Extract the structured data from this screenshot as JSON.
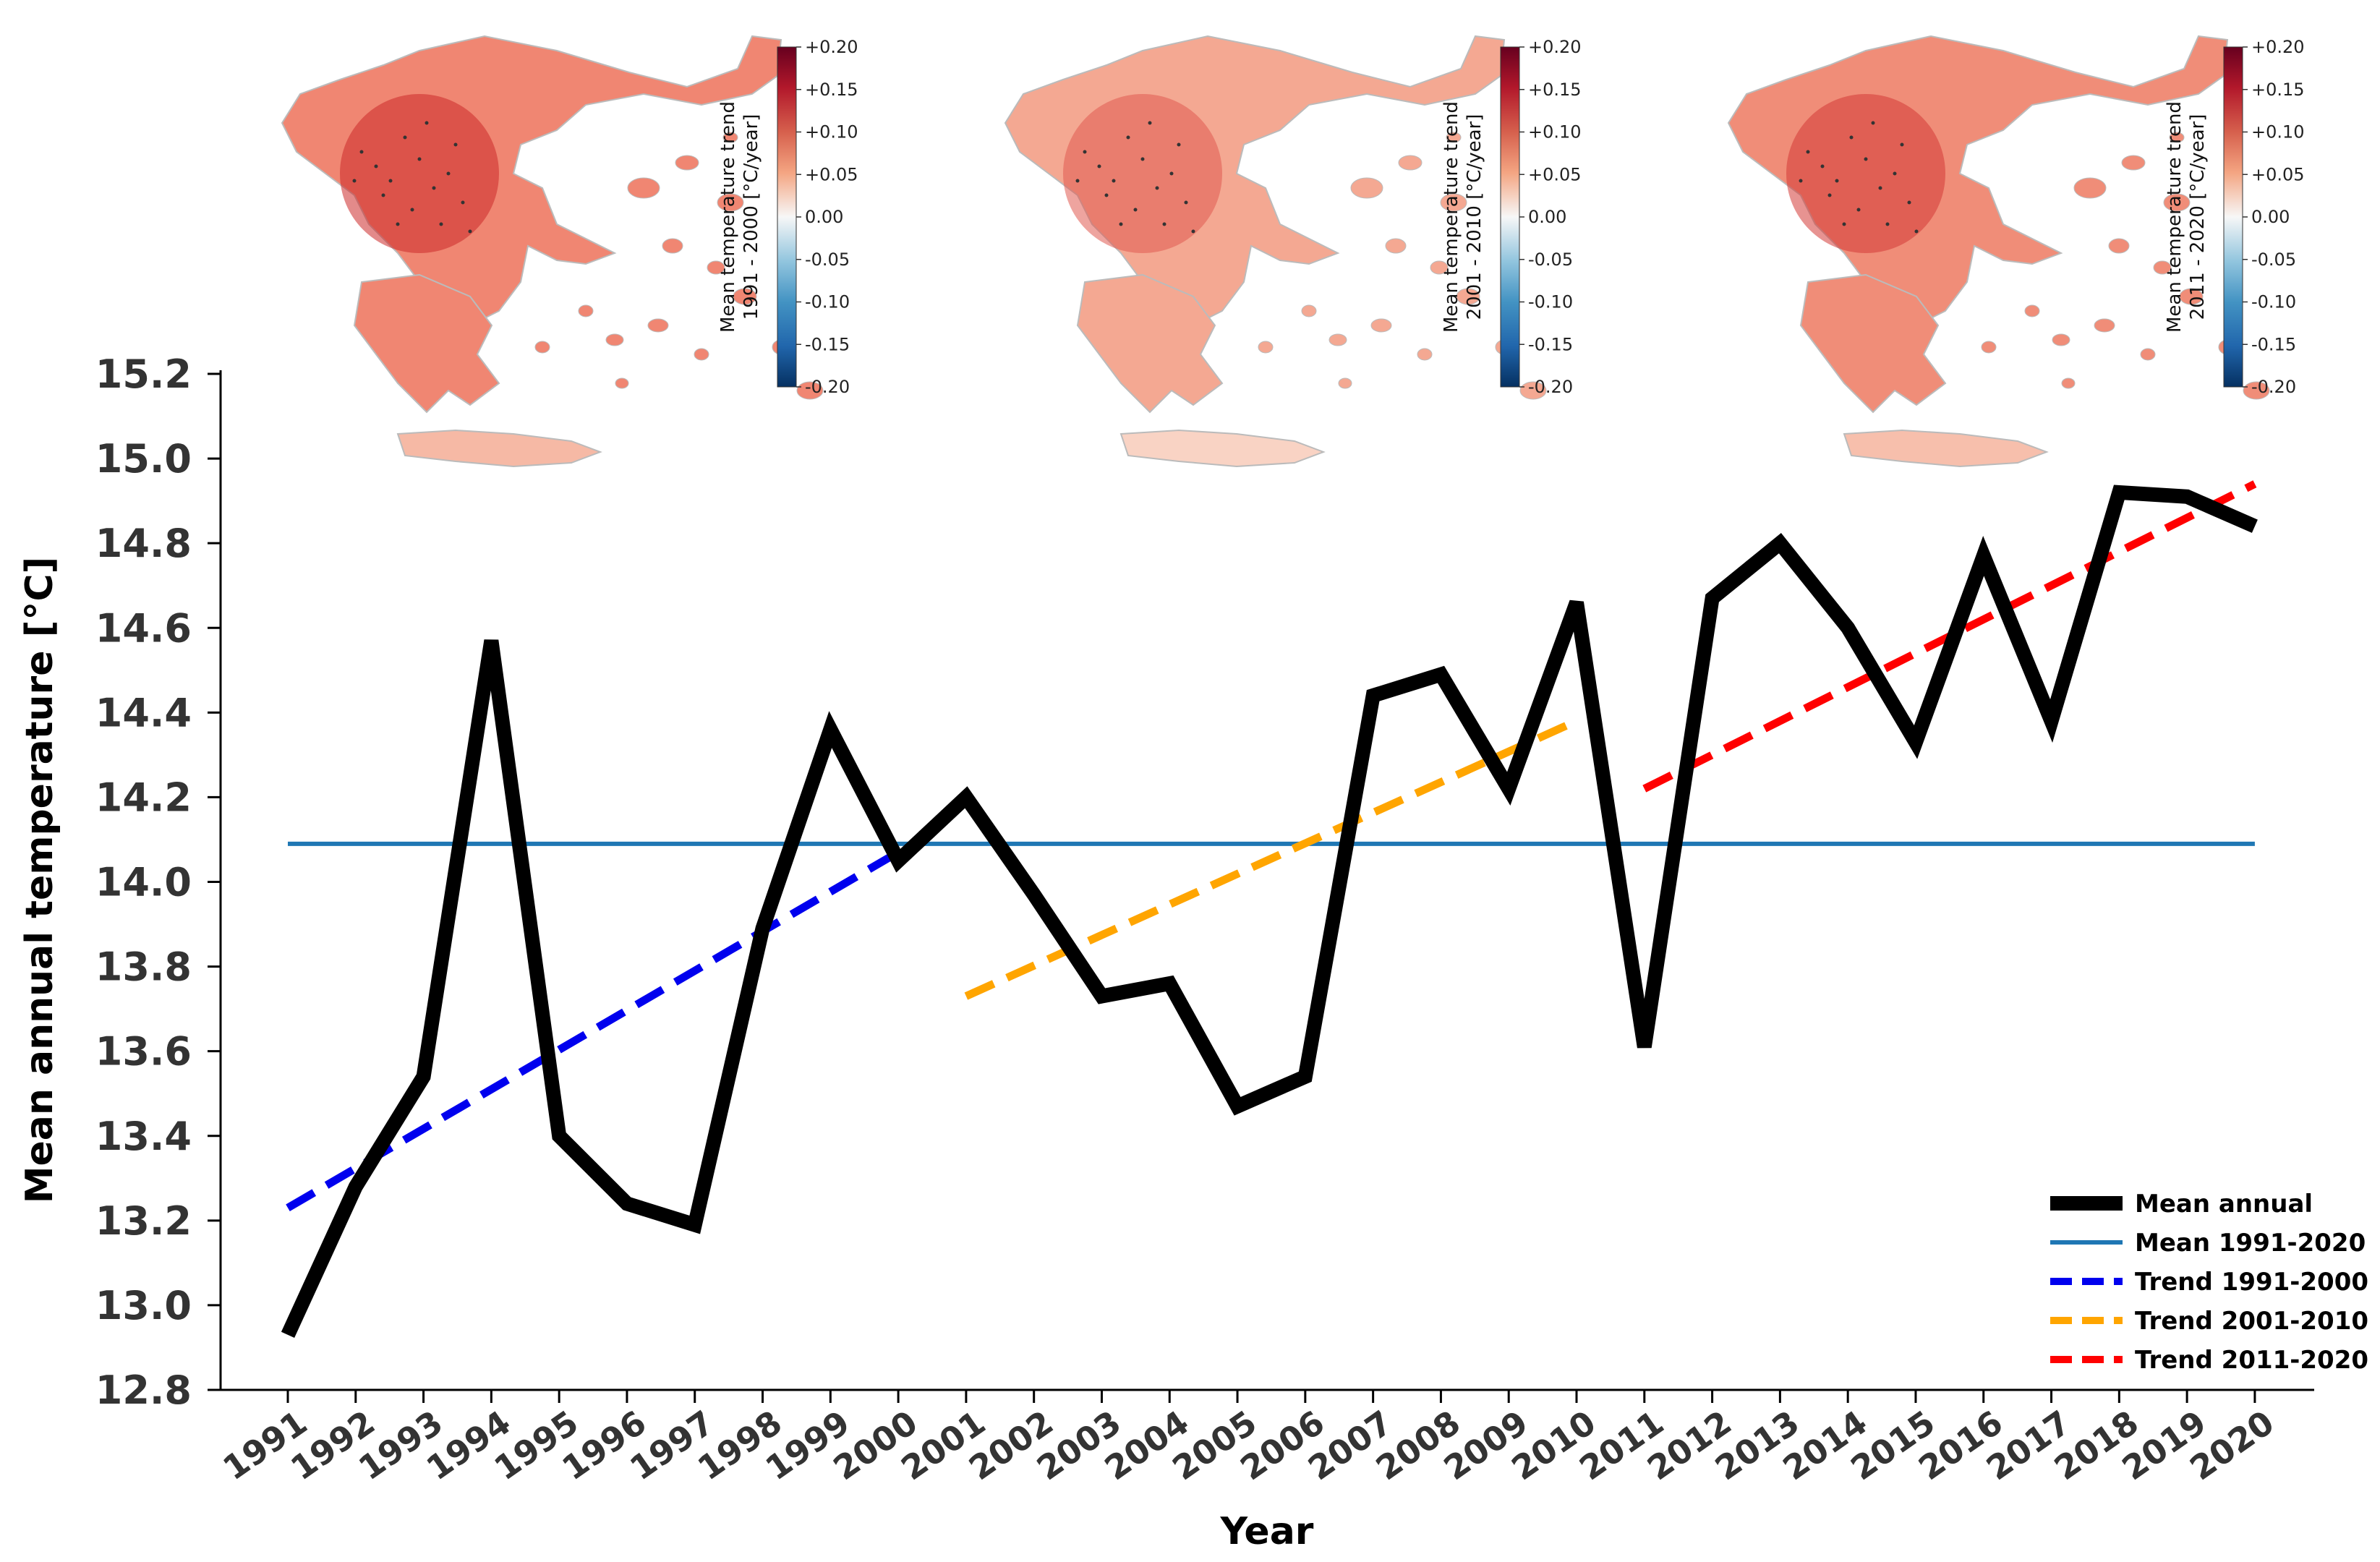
{
  "chart_data": {
    "type": "line",
    "title": "",
    "xlabel": "Year",
    "ylabel": "Mean annual temperature [°C]",
    "ylim": [
      12.8,
      15.2
    ],
    "yticks": [
      "12.8",
      "13.0",
      "13.2",
      "13.4",
      "13.6",
      "13.8",
      "14.0",
      "14.2",
      "14.4",
      "14.6",
      "14.8",
      "15.0",
      "15.2"
    ],
    "categories": [
      "1991",
      "1992",
      "1993",
      "1994",
      "1995",
      "1996",
      "1997",
      "1998",
      "1999",
      "2000",
      "2001",
      "2002",
      "2003",
      "2004",
      "2005",
      "2006",
      "2007",
      "2008",
      "2009",
      "2010",
      "2011",
      "2012",
      "2013",
      "2014",
      "2015",
      "2016",
      "2017",
      "2018",
      "2019",
      "2020"
    ],
    "series": [
      {
        "name": "Mean annual",
        "color": "#000000",
        "style": "solid",
        "values": [
          12.93,
          13.28,
          13.54,
          14.57,
          13.4,
          13.24,
          13.19,
          13.89,
          14.36,
          14.05,
          14.2,
          13.97,
          13.73,
          13.76,
          13.47,
          13.54,
          14.44,
          14.49,
          14.22,
          14.66,
          13.61,
          14.67,
          14.8,
          14.6,
          14.33,
          14.77,
          14.38,
          14.92,
          14.91,
          14.84
        ]
      },
      {
        "name": "Mean 1991-2020",
        "color": "#1f77b4",
        "style": "solid",
        "x": [
          "1991",
          "2020"
        ],
        "values": [
          14.09,
          14.09
        ]
      },
      {
        "name": "Trend 1991-2000",
        "color": "#0000ee",
        "style": "dashed",
        "x": [
          "1991",
          "2000"
        ],
        "values": [
          13.23,
          14.07
        ]
      },
      {
        "name": "Trend 2001-2010",
        "color": "#ffa500",
        "style": "dashed",
        "x": [
          "2001",
          "2010"
        ],
        "values": [
          13.73,
          14.38
        ]
      },
      {
        "name": "Trend 2011-2020",
        "color": "#ff0000",
        "style": "dashed",
        "x": [
          "2011",
          "2020"
        ],
        "values": [
          14.22,
          14.94
        ]
      }
    ],
    "legend_position": "bottom-right",
    "insets": [
      {
        "name": "map-1991-2000",
        "colorbar_title_line1": "Mean temperature trend",
        "colorbar_title_line2": "1991 - 2000  [°C/year]",
        "colorbar_ticks": [
          "+0.20",
          "+0.15",
          "+0.10",
          "+0.05",
          "0.00",
          "-0.05",
          "-0.10",
          "-0.15",
          "-0.20"
        ],
        "color_strong": "#cc2a2a",
        "color_mid": "#f08672",
        "color_light": "#f6b9a5"
      },
      {
        "name": "map-2001-2010",
        "colorbar_title_line1": "Mean temperature trend",
        "colorbar_title_line2": "2001 - 2010  [°C/year]",
        "colorbar_ticks": [
          "+0.20",
          "+0.15",
          "+0.10",
          "+0.05",
          "0.00",
          "-0.05",
          "-0.10",
          "-0.15",
          "-0.20"
        ],
        "color_strong": "#e05a50",
        "color_mid": "#f4a892",
        "color_light": "#f9d3c4"
      },
      {
        "name": "map-2011-2020",
        "colorbar_title_line1": "Mean temperature trend",
        "colorbar_title_line2": "2011 - 2020  [°C/year]",
        "colorbar_ticks": [
          "+0.20",
          "+0.15",
          "+0.10",
          "+0.05",
          "0.00",
          "-0.05",
          "-0.10",
          "-0.15",
          "-0.20"
        ],
        "color_strong": "#d43a36",
        "color_mid": "#f08d78",
        "color_light": "#f7bfac"
      }
    ]
  }
}
